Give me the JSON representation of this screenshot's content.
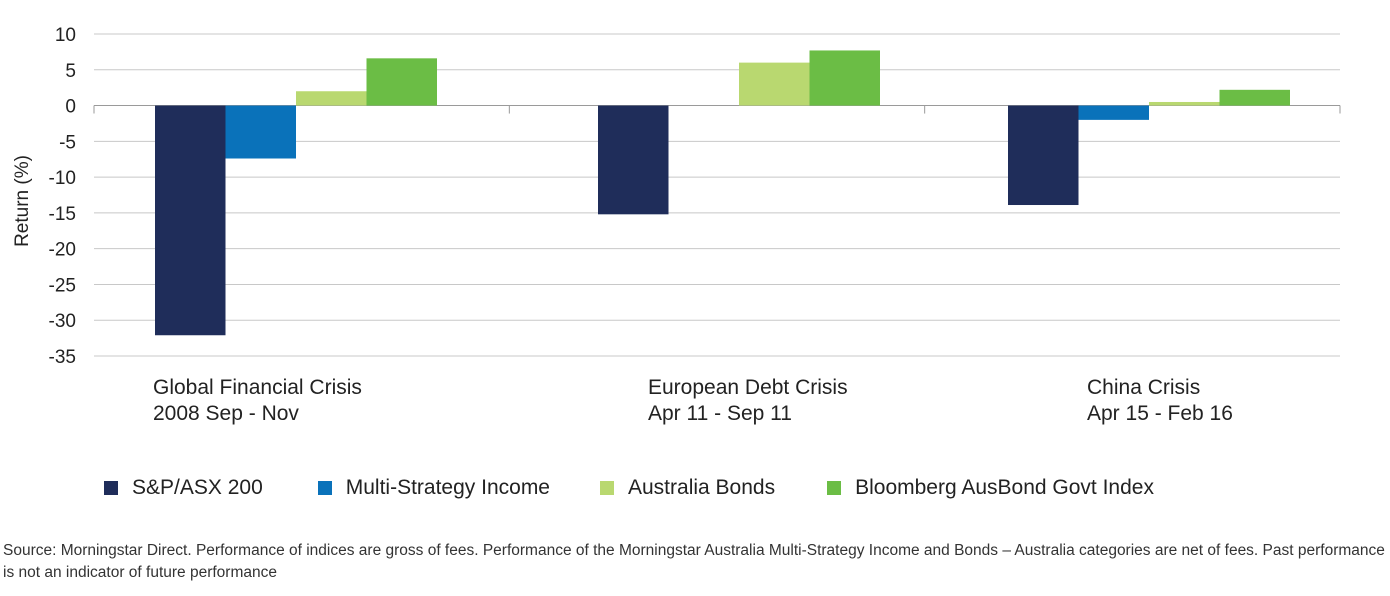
{
  "chart_data": {
    "type": "bar",
    "ylabel": "Return (%)",
    "ylim": [
      -35,
      10
    ],
    "yticks": [
      10,
      5,
      0,
      -5,
      -10,
      -15,
      -20,
      -25,
      -30,
      -35
    ],
    "grid": true,
    "legend_position": "bottom",
    "categories": [
      [
        "Global Financial Crisis",
        "2008 Sep - Nov"
      ],
      [
        "European Debt Crisis",
        "Apr 11 - Sep 11"
      ],
      [
        "China Crisis",
        "Apr 15 - Feb 16"
      ]
    ],
    "series": [
      {
        "name": "S&P/ASX 200",
        "color": "#1f2d5a",
        "values": [
          -32.1,
          -15.2,
          -13.9
        ]
      },
      {
        "name": "Multi-Strategy Income",
        "color": "#0a72ba",
        "values": [
          -7.4,
          0,
          -2.0
        ]
      },
      {
        "name": "Australia Bonds",
        "color": "#b9d870",
        "values": [
          2.0,
          6.0,
          0.5
        ]
      },
      {
        "name": "Bloomberg AusBond Govt Index",
        "color": "#6bbd45",
        "values": [
          6.6,
          7.7,
          2.2
        ]
      }
    ]
  },
  "source_note": "Source: Morningstar Direct. Performance of indices are gross of fees. Performance of the Morningstar Australia Multi-Strategy Income and Bonds – Australia categories are net of fees. Past performance is not an indicator of future performance"
}
